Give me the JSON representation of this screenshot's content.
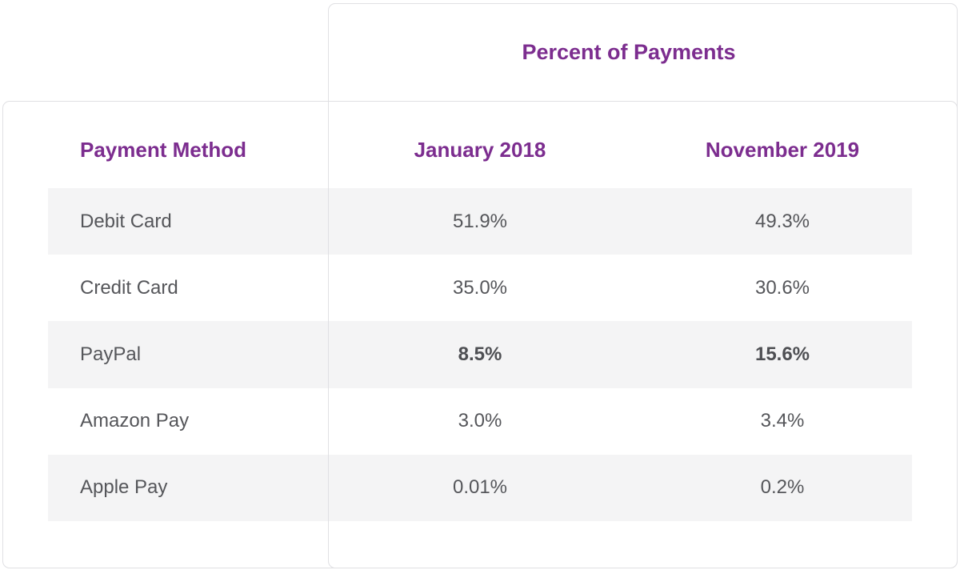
{
  "chart_data": {
    "type": "table",
    "title": "Percent of Payments",
    "columns": [
      "Payment Method",
      "January 2018",
      "November 2019"
    ],
    "rows": [
      {
        "method": "Debit Card",
        "jan_2018": "51.9%",
        "nov_2019": "49.3%",
        "emphasized": false
      },
      {
        "method": "Credit Card",
        "jan_2018": "35.0%",
        "nov_2019": "30.6%",
        "emphasized": false
      },
      {
        "method": "PayPal",
        "jan_2018": "8.5%",
        "nov_2019": "15.6%",
        "emphasized": true
      },
      {
        "method": "Amazon Pay",
        "jan_2018": "3.0%",
        "nov_2019": "3.4%",
        "emphasized": false
      },
      {
        "method": "Apple Pay",
        "jan_2018": "0.01%",
        "nov_2019": "0.2%",
        "emphasized": false
      }
    ],
    "layout": {
      "striped_row_indices": [
        0,
        2,
        4
      ],
      "legend": "none",
      "grid": "off"
    }
  },
  "colors": {
    "accent_purple": "#7c2d8f",
    "body_text": "#55565a",
    "row_stripe": "#f4f4f5",
    "card_border": "#e0e0e3",
    "background": "#ffffff"
  }
}
